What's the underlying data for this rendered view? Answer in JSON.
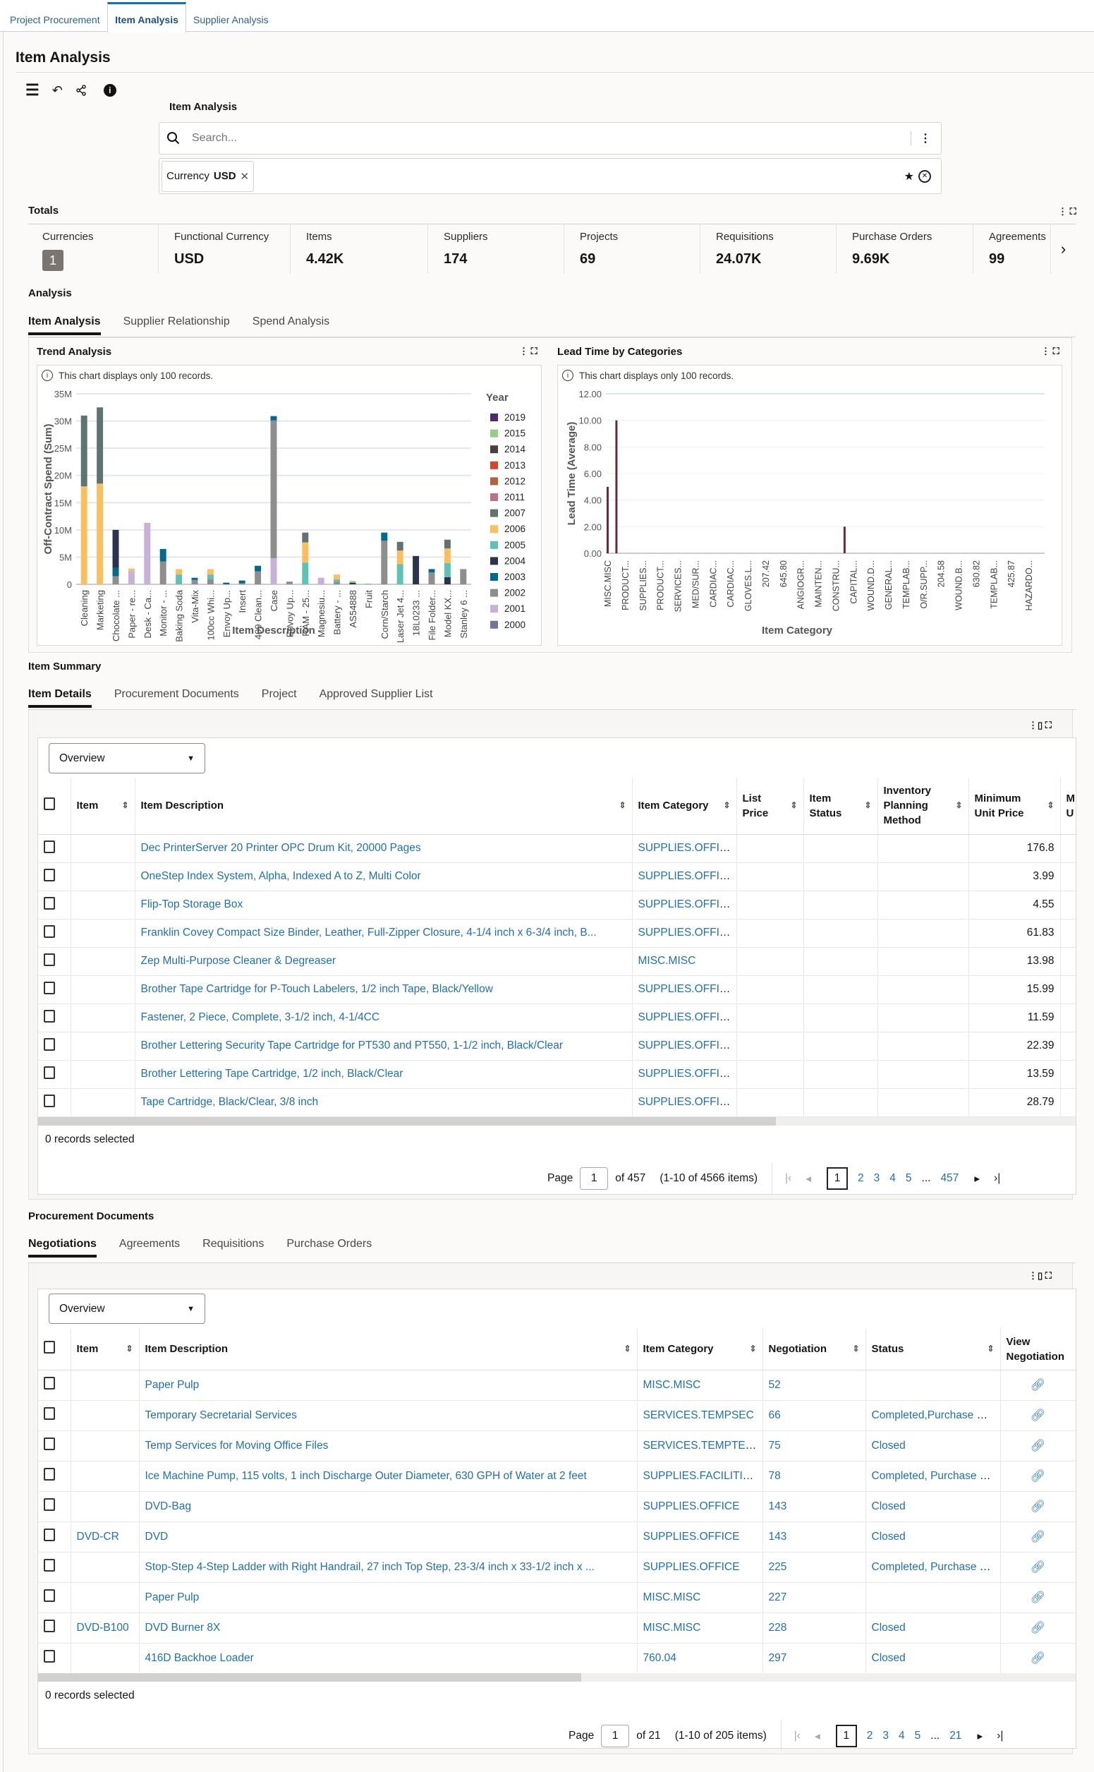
{
  "top_tabs": [
    {
      "label": "Project Procurement"
    },
    {
      "label": "Item Analysis",
      "active": true
    },
    {
      "label": "Supplier Analysis"
    }
  ],
  "page_title": "Item Analysis",
  "search": {
    "label": "Item Analysis",
    "placeholder": "Search...",
    "filter_chip": {
      "name": "Currency",
      "value": "USD"
    }
  },
  "totals": {
    "title": "Totals",
    "cards": [
      {
        "label": "Currencies",
        "value": "1"
      },
      {
        "label": "Functional Currency",
        "value": "USD"
      },
      {
        "label": "Items",
        "value": "4.42K"
      },
      {
        "label": "Suppliers",
        "value": "174"
      },
      {
        "label": "Projects",
        "value": "69"
      },
      {
        "label": "Requisitions",
        "value": "24.07K"
      },
      {
        "label": "Purchase Orders",
        "value": "9.69K"
      },
      {
        "label": "Agreements",
        "value": "99"
      }
    ]
  },
  "analysis": {
    "title": "Analysis",
    "tabs": [
      "Item Analysis",
      "Supplier Relationship",
      "Spend Analysis"
    ],
    "note": "This chart displays only 100 records."
  },
  "colors": {
    "accent": "#1f6fb3",
    "tab_active": "#0c72c4",
    "lead_bar": "#6b2a3a"
  },
  "chart_data": [
    {
      "type": "bar",
      "stacked": true,
      "title": "Trend Analysis",
      "xlabel": "Item Description",
      "ylabel": "Off-Contract Spend (Sum)",
      "ylim": [
        0,
        35000000
      ],
      "yticks": [
        "0",
        "5M",
        "10M",
        "15M",
        "20M",
        "25M",
        "30M",
        "35M"
      ],
      "grid": true,
      "legend": {
        "title": "Year",
        "placement": "right"
      },
      "years": [
        "2019",
        "2015",
        "2014",
        "2013",
        "2012",
        "2011",
        "2007",
        "2006",
        "2005",
        "2004",
        "2003",
        "2002",
        "2001",
        "2000"
      ],
      "year_colors": {
        "2019": "#4e2a6e",
        "2015": "#93cf80",
        "2014": "#4a3f36",
        "2013": "#d9432e",
        "2012": "#b5623a",
        "2011": "#c0707e",
        "2007": "#5f7373",
        "2006": "#fdbf5e",
        "2005": "#5ec3b5",
        "2004": "#2c3350",
        "2003": "#006a8e",
        "2002": "#8e8e8e",
        "2001": "#c8b1d8",
        "2000": "#6b7796"
      },
      "categories": [
        "Cleaning",
        "Marketing",
        "Chocolate ...",
        "Paper - re...",
        "Desk - Ca...",
        "Monitor - ...",
        "Baking Soda",
        "Vita-Mix",
        "100cc Whi...",
        "Envoy Up...",
        "Insert",
        "409 Clean...",
        "Case",
        "Envoy Up...",
        "RAM - 25...",
        "Magnesiu...",
        "Battery - ...",
        "AS54888",
        "Fruit",
        "Corn/Starch",
        "Laser Jet 4...",
        "18L0233 ...",
        "File Folder...",
        "Model KX...",
        "Stanley 6 ..."
      ],
      "values": [
        {
          "2006": 18000000,
          "2007": 13000000
        },
        {
          "2006": 18500000,
          "2007": 14000000
        },
        {
          "2002": 1500000,
          "2003": 1500000,
          "2004": 7000000
        },
        {
          "2006": 400000,
          "2001": 2500000
        },
        {
          "2001": 11300000
        },
        {
          "2002": 4200000,
          "2003": 2300000
        },
        {
          "2005": 1800000,
          "2006": 1000000
        },
        {
          "2002": 800000,
          "2003": 400000
        },
        {
          "2005": 800000,
          "2006": 1000000,
          "2002": 1000000
        },
        {
          "2003": 300000
        },
        {
          "2002": 200000,
          "2003": 500000
        },
        {
          "2002": 2400000,
          "2003": 1000000
        },
        {
          "2001": 4800000,
          "2002": 25300000,
          "2003": 800000
        },
        {
          "2002": 500000
        },
        {
          "2005": 4000000,
          "2006": 3700000,
          "2007": 1800000
        },
        {
          "2001": 1200000
        },
        {
          "2005": 400000,
          "2006": 900000,
          "2002": 500000
        },
        {
          "2004": 300000,
          "2015": 300000
        },
        {
          "2002": 100000
        },
        {
          "2002": 8000000,
          "2003": 1500000
        },
        {
          "2005": 3700000,
          "2006": 2500000,
          "2007": 1600000
        },
        {
          "2004": 5200000
        },
        {
          "2002": 2200000,
          "2003": 600000
        },
        {
          "2004": 1300000,
          "2005": 2600000,
          "2006": 2700000,
          "2007": 1600000
        },
        {
          "2002": 2800000
        }
      ]
    },
    {
      "type": "bar",
      "title": "Lead Time by Categories",
      "xlabel": "Item Category",
      "ylabel": "Lead Time (Average)",
      "ylim": [
        0,
        12
      ],
      "yticks": [
        "0.00",
        "2.00",
        "4.00",
        "6.00",
        "8.00",
        "10.00",
        "12.00"
      ],
      "grid": true,
      "categories": [
        "MISC.MISC",
        "",
        "PRODUCT...",
        "",
        "SUPPLIES...",
        "",
        "PRODUCT...",
        "",
        "SERVICES...",
        "",
        "MED/SUR...",
        "",
        "CARDIAC...",
        "",
        "CARDIAC...",
        "",
        "GLOVES.L...",
        "",
        "207.42",
        "",
        "645.80",
        "",
        "ANGIOGR...",
        "",
        "MAINTEN...",
        "",
        "CONSTRU...",
        "",
        "CAPITAL...",
        "",
        "WOUND.D...",
        "",
        "GENERAL...",
        "",
        "TEMPLAB...",
        "",
        "O/R.SUPP...",
        "",
        "204.58",
        "",
        "WOUND.B...",
        "",
        "630.82",
        "",
        "TEMPLAB...",
        "",
        "425.87",
        "",
        "HAZARDO...",
        ""
      ],
      "values": [
        5,
        10,
        0,
        0,
        0,
        0,
        0,
        0,
        0,
        0,
        0,
        0,
        0,
        0,
        0,
        0,
        0,
        0,
        0,
        0,
        0,
        0,
        0,
        0,
        0,
        0,
        0,
        2,
        0,
        0,
        0,
        0,
        0,
        0,
        0,
        0,
        0,
        0,
        0,
        0,
        0,
        0,
        0,
        0,
        0,
        0,
        0,
        0,
        0,
        0
      ]
    }
  ],
  "item_summary": {
    "title": "Item Summary",
    "tabs": [
      "Item Details",
      "Procurement Documents",
      "Project",
      "Approved Supplier List"
    ],
    "view_select": "Overview",
    "columns": [
      "Item",
      "Item Description",
      "Item Category",
      "List Price",
      "Item Status",
      "Inventory Planning Method",
      "Minimum Unit Price",
      "M U"
    ],
    "rows": [
      [
        "",
        "Dec PrinterServer 20 Printer OPC Drum Kit, 20000 Pages",
        "SUPPLIES.OFFICE",
        "",
        "",
        "",
        "176.8"
      ],
      [
        "",
        "OneStep Index System, Alpha, Indexed A to Z, Multi Color",
        "SUPPLIES.OFFICE",
        "",
        "",
        "",
        "3.99"
      ],
      [
        "",
        "Flip-Top Storage Box",
        "SUPPLIES.OFFICE",
        "",
        "",
        "",
        "4.55"
      ],
      [
        "",
        "Franklin Covey Compact Size Binder, Leather, Full-Zipper Closure, 4-1/4 inch x 6-3/4 inch, B...",
        "SUPPLIES.OFFICE",
        "",
        "",
        "",
        "61.83"
      ],
      [
        "",
        "Zep Multi-Purpose Cleaner & Degreaser",
        "MISC.MISC",
        "",
        "",
        "",
        "13.98"
      ],
      [
        "",
        "Brother Tape Cartridge for P-Touch Labelers, 1/2 inch Tape, Black/Yellow",
        "SUPPLIES.OFFICE",
        "",
        "",
        "",
        "15.99"
      ],
      [
        "",
        "Fastener, 2 Piece, Complete, 3-1/2 inch, 4-1/4CC",
        "SUPPLIES.OFFICE",
        "",
        "",
        "",
        "11.59"
      ],
      [
        "",
        "Brother Lettering Security Tape Cartridge for PT530 and PT550, 1-1/2 inch, Black/Clear",
        "SUPPLIES.OFFICE",
        "",
        "",
        "",
        "22.39"
      ],
      [
        "",
        "Brother Lettering Tape Cartridge, 1/2 inch, Black/Clear",
        "SUPPLIES.OFFICE",
        "",
        "",
        "",
        "13.59"
      ],
      [
        "",
        "Tape Cartridge, Black/Clear, 3/8 inch",
        "SUPPLIES.OFFICE",
        "",
        "",
        "",
        "28.79"
      ]
    ],
    "selected_text": "0 records selected",
    "pager": {
      "page_label": "Page",
      "page": "1",
      "of": "of 457",
      "range": "(1-10 of 4566 items)",
      "pages": [
        "1",
        "2",
        "3",
        "4",
        "5",
        "...",
        "457"
      ]
    }
  },
  "procurement_documents": {
    "title": "Procurement Documents",
    "tabs": [
      "Negotiations",
      "Agreements",
      "Requisitions",
      "Purchase Orders"
    ],
    "view_select": "Overview",
    "columns": [
      "Item",
      "Item Description",
      "Item Category",
      "Negotiation",
      "Status",
      "View Negotiation"
    ],
    "rows": [
      [
        "",
        "Paper Pulp",
        "MISC.MISC",
        "52",
        ""
      ],
      [
        "",
        "Temporary Secretarial Services",
        "SERVICES.TEMPSEC",
        "66",
        "Completed,Purchase Order"
      ],
      [
        "",
        "Temp Services for Moving Office Files",
        "SERVICES.TEMPTECH",
        "75",
        "Closed"
      ],
      [
        "",
        "Ice Machine Pump, 115 volts, 1 inch Discharge Outer Diameter, 630 GPH of Water at 2 feet",
        "SUPPLIES.FACILITIES",
        "78",
        "Completed, Purchase Order"
      ],
      [
        "",
        "DVD-Bag",
        "SUPPLIES.OFFICE",
        "143",
        "Closed"
      ],
      [
        "DVD-CR",
        "DVD",
        "SUPPLIES.OFFICE",
        "143",
        "Closed"
      ],
      [
        "",
        "Stop-Step 4-Step Ladder with Right Handrail, 27 inch Top Step, 23-3/4 inch x 33-1/2 inch x ...",
        "SUPPLIES.OFFICE",
        "225",
        "Completed, Purchase Order"
      ],
      [
        "",
        "Paper Pulp",
        "MISC.MISC",
        "227",
        ""
      ],
      [
        "DVD-B100",
        "DVD Burner 8X",
        "MISC.MISC",
        "228",
        "Closed"
      ],
      [
        "",
        "416D Backhoe Loader",
        "760.04",
        "297",
        "Closed"
      ]
    ],
    "selected_text": "0 records selected",
    "pager": {
      "page_label": "Page",
      "page": "1",
      "of": "of 21",
      "range": "(1-10 of 205 items)",
      "pages": [
        "1",
        "2",
        "3",
        "4",
        "5",
        "...",
        "21"
      ]
    }
  }
}
